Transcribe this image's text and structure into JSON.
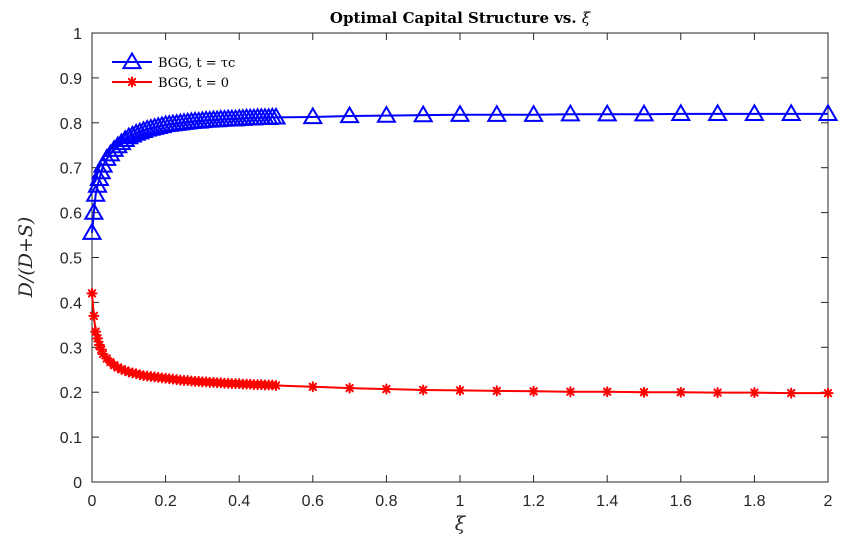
{
  "chart_data": {
    "type": "line",
    "title": "Optimal Capital Structure vs. ξ",
    "xlabel": "ξ",
    "ylabel": "D/(D+S)",
    "xlim": [
      0,
      2
    ],
    "ylim": [
      0,
      1
    ],
    "x_ticks": [
      "0",
      "0.2",
      "0.4",
      "0.6",
      "0.8",
      "1",
      "1.2",
      "1.4",
      "1.6",
      "1.8",
      "2"
    ],
    "y_ticks": [
      "0",
      "0.1",
      "0.2",
      "0.3",
      "0.4",
      "0.5",
      "0.6",
      "0.7",
      "0.8",
      "0.9",
      "1"
    ],
    "grid": false,
    "legend_position": "top-left",
    "series": [
      {
        "name": "BGG, t = τc",
        "color": "#0000ff",
        "marker": "triangle",
        "x": [
          0,
          0.005,
          0.01,
          0.015,
          0.02,
          0.025,
          0.03,
          0.04,
          0.05,
          0.06,
          0.07,
          0.08,
          0.09,
          0.1,
          0.11,
          0.12,
          0.13,
          0.14,
          0.15,
          0.16,
          0.17,
          0.18,
          0.19,
          0.2,
          0.21,
          0.22,
          0.23,
          0.24,
          0.25,
          0.26,
          0.27,
          0.28,
          0.29,
          0.3,
          0.31,
          0.32,
          0.33,
          0.34,
          0.35,
          0.36,
          0.37,
          0.38,
          0.39,
          0.4,
          0.41,
          0.42,
          0.43,
          0.44,
          0.45,
          0.46,
          0.47,
          0.48,
          0.49,
          0.5,
          0.6,
          0.7,
          0.8,
          0.9,
          1.0,
          1.1,
          1.2,
          1.3,
          1.4,
          1.5,
          1.6,
          1.7,
          1.8,
          1.9,
          2.0
        ],
        "y": [
          0.555,
          0.6,
          0.64,
          0.66,
          0.675,
          0.69,
          0.705,
          0.72,
          0.73,
          0.74,
          0.748,
          0.755,
          0.762,
          0.768,
          0.772,
          0.776,
          0.779,
          0.782,
          0.785,
          0.787,
          0.789,
          0.791,
          0.793,
          0.795,
          0.796,
          0.797,
          0.798,
          0.799,
          0.8,
          0.801,
          0.802,
          0.803,
          0.803,
          0.804,
          0.805,
          0.805,
          0.806,
          0.806,
          0.807,
          0.807,
          0.808,
          0.808,
          0.808,
          0.809,
          0.809,
          0.81,
          0.81,
          0.81,
          0.811,
          0.811,
          0.811,
          0.811,
          0.812,
          0.812,
          0.813,
          0.815,
          0.816,
          0.817,
          0.818,
          0.818,
          0.818,
          0.819,
          0.819,
          0.819,
          0.82,
          0.82,
          0.82,
          0.82,
          0.82
        ]
      },
      {
        "name": "BGG, t = 0",
        "color": "#ff0000",
        "marker": "asterisk",
        "x": [
          0,
          0.005,
          0.01,
          0.015,
          0.02,
          0.025,
          0.03,
          0.04,
          0.05,
          0.06,
          0.07,
          0.08,
          0.09,
          0.1,
          0.11,
          0.12,
          0.13,
          0.14,
          0.15,
          0.16,
          0.17,
          0.18,
          0.19,
          0.2,
          0.21,
          0.22,
          0.23,
          0.24,
          0.25,
          0.26,
          0.27,
          0.28,
          0.29,
          0.3,
          0.31,
          0.32,
          0.33,
          0.34,
          0.35,
          0.36,
          0.37,
          0.38,
          0.39,
          0.4,
          0.41,
          0.42,
          0.43,
          0.44,
          0.45,
          0.46,
          0.47,
          0.48,
          0.49,
          0.5,
          0.6,
          0.7,
          0.8,
          0.9,
          1.0,
          1.1,
          1.2,
          1.3,
          1.4,
          1.5,
          1.6,
          1.7,
          1.8,
          1.9,
          2.0
        ],
        "y": [
          0.42,
          0.37,
          0.335,
          0.32,
          0.305,
          0.295,
          0.285,
          0.275,
          0.267,
          0.26,
          0.255,
          0.251,
          0.248,
          0.245,
          0.243,
          0.241,
          0.239,
          0.237,
          0.236,
          0.235,
          0.234,
          0.233,
          0.232,
          0.231,
          0.23,
          0.229,
          0.228,
          0.227,
          0.226,
          0.226,
          0.225,
          0.224,
          0.224,
          0.223,
          0.223,
          0.222,
          0.222,
          0.221,
          0.221,
          0.22,
          0.22,
          0.219,
          0.219,
          0.219,
          0.218,
          0.218,
          0.218,
          0.217,
          0.217,
          0.217,
          0.216,
          0.216,
          0.216,
          0.215,
          0.212,
          0.209,
          0.207,
          0.205,
          0.204,
          0.203,
          0.202,
          0.201,
          0.201,
          0.2,
          0.2,
          0.199,
          0.199,
          0.198,
          0.198
        ]
      }
    ]
  }
}
